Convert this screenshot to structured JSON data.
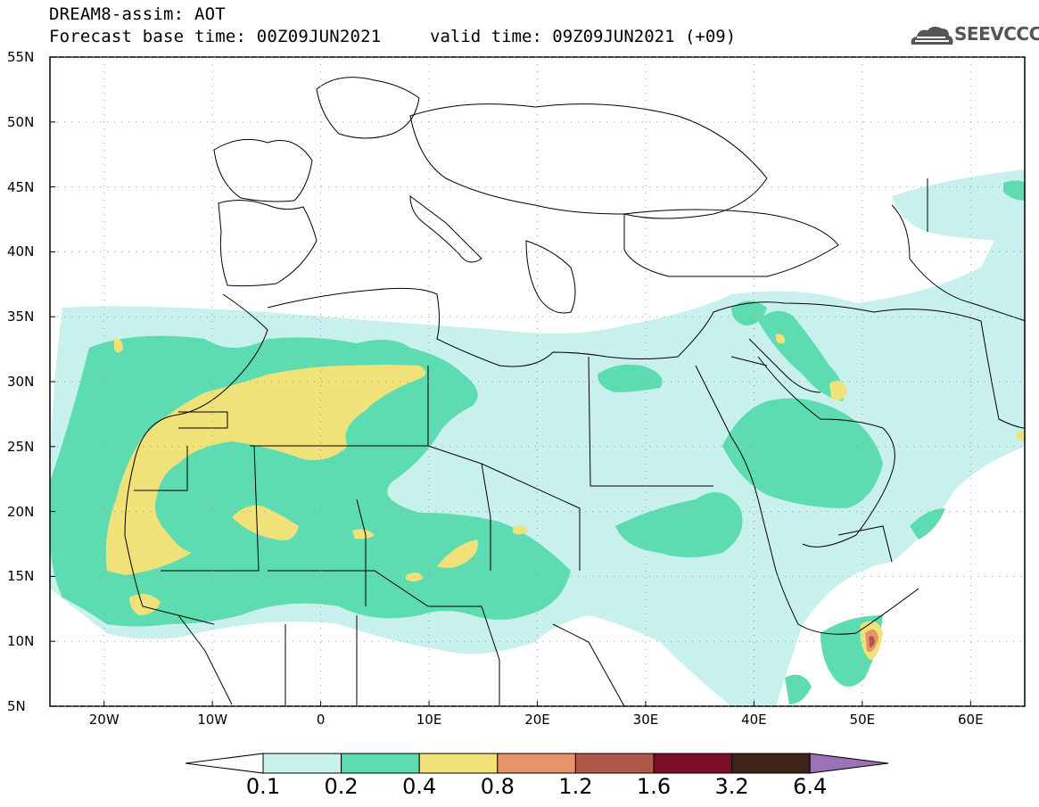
{
  "header": {
    "model_line": "DREAM8-assim: AOT",
    "base_time": "Forecast base time: 00Z09JUN2021",
    "valid_time": "valid time: 09Z09JUN2021 (+09)"
  },
  "logo": {
    "text": "SEEVCCC",
    "icon": "cloud-icon"
  },
  "map": {
    "lat_labels": [
      "55N",
      "50N",
      "45N",
      "40N",
      "35N",
      "30N",
      "25N",
      "20N",
      "15N",
      "10N",
      "5N"
    ],
    "lon_labels": [
      "20W",
      "10W",
      "0",
      "10E",
      "20E",
      "30E",
      "40E",
      "50E",
      "60E"
    ],
    "extent": {
      "lon_min": -25,
      "lon_max": 65,
      "lat_min": 5,
      "lat_max": 55
    }
  },
  "colorbar": {
    "labels": [
      "0.1",
      "0.2",
      "0.4",
      "0.8",
      "1.2",
      "1.6",
      "3.2",
      "6.4"
    ],
    "colors": [
      "#ffffff",
      "#c8f0ec",
      "#5cdcb0",
      "#f0e278",
      "#e8936a",
      "#b05848",
      "#7a0e28",
      "#3e2418",
      "#9a72b8"
    ]
  }
}
